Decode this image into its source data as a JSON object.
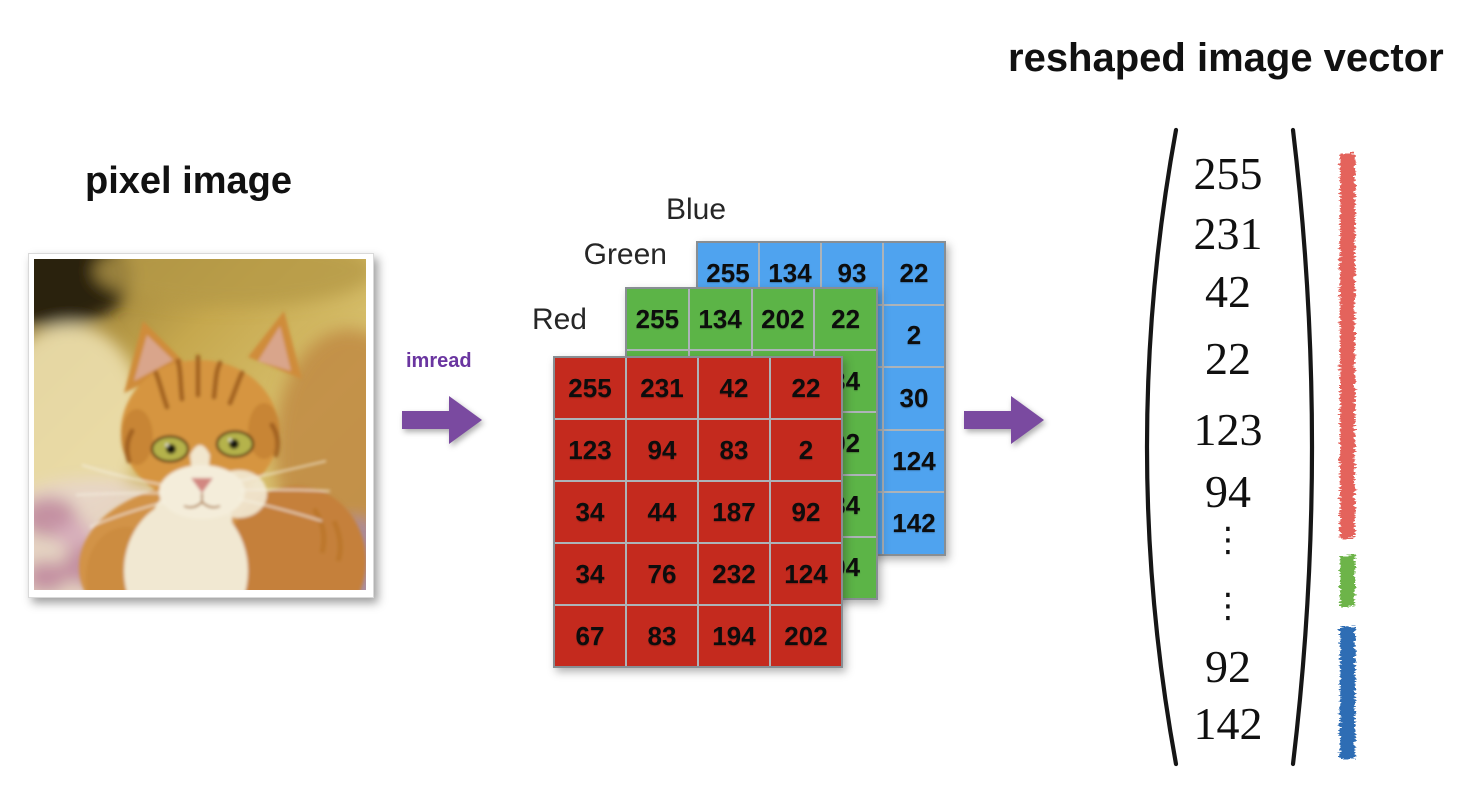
{
  "left_panel": {
    "title": "pixel image"
  },
  "imread": {
    "label": "imread",
    "color": "#6A35A0"
  },
  "arrows": {
    "color": "#7A4AA0"
  },
  "matrices": {
    "red": {
      "label": "Red",
      "color": "#C42A1E",
      "rows": [
        [
          "255",
          "231",
          "42",
          "22"
        ],
        [
          "123",
          "94",
          "83",
          "2"
        ],
        [
          "34",
          "44",
          "187",
          "92"
        ],
        [
          "34",
          "76",
          "232",
          "124"
        ],
        [
          "67",
          "83",
          "194",
          "202"
        ]
      ]
    },
    "green": {
      "label": "Green",
      "color": "#5CB447",
      "rows": [
        [
          "255",
          "134",
          "202",
          "22"
        ],
        [
          "",
          "",
          "",
          "34"
        ],
        [
          "",
          "",
          "",
          "92"
        ],
        [
          "",
          "",
          "",
          "84"
        ],
        [
          "",
          "",
          "",
          "94"
        ]
      ]
    },
    "blue": {
      "label": "Blue",
      "color": "#4FA3EF",
      "rows": [
        [
          "255",
          "134",
          "93",
          "22"
        ],
        [
          "",
          "",
          "",
          "2"
        ],
        [
          "",
          "",
          "",
          "30"
        ],
        [
          "",
          "",
          "",
          "124"
        ],
        [
          "",
          "",
          "",
          "142"
        ]
      ]
    }
  },
  "vector_panel": {
    "title": "reshaped image vector",
    "values_top": [
      "255",
      "231",
      "42",
      "22",
      "123",
      "94"
    ],
    "ellipsis": [
      "⋮",
      "⋮"
    ],
    "values_bottom": [
      "92",
      "142"
    ],
    "bars": [
      {
        "name": "red-channel",
        "color": "#E4645C"
      },
      {
        "name": "green-channel",
        "color": "#6DB44A"
      },
      {
        "name": "blue-channel",
        "color": "#2E6DB4"
      }
    ]
  }
}
